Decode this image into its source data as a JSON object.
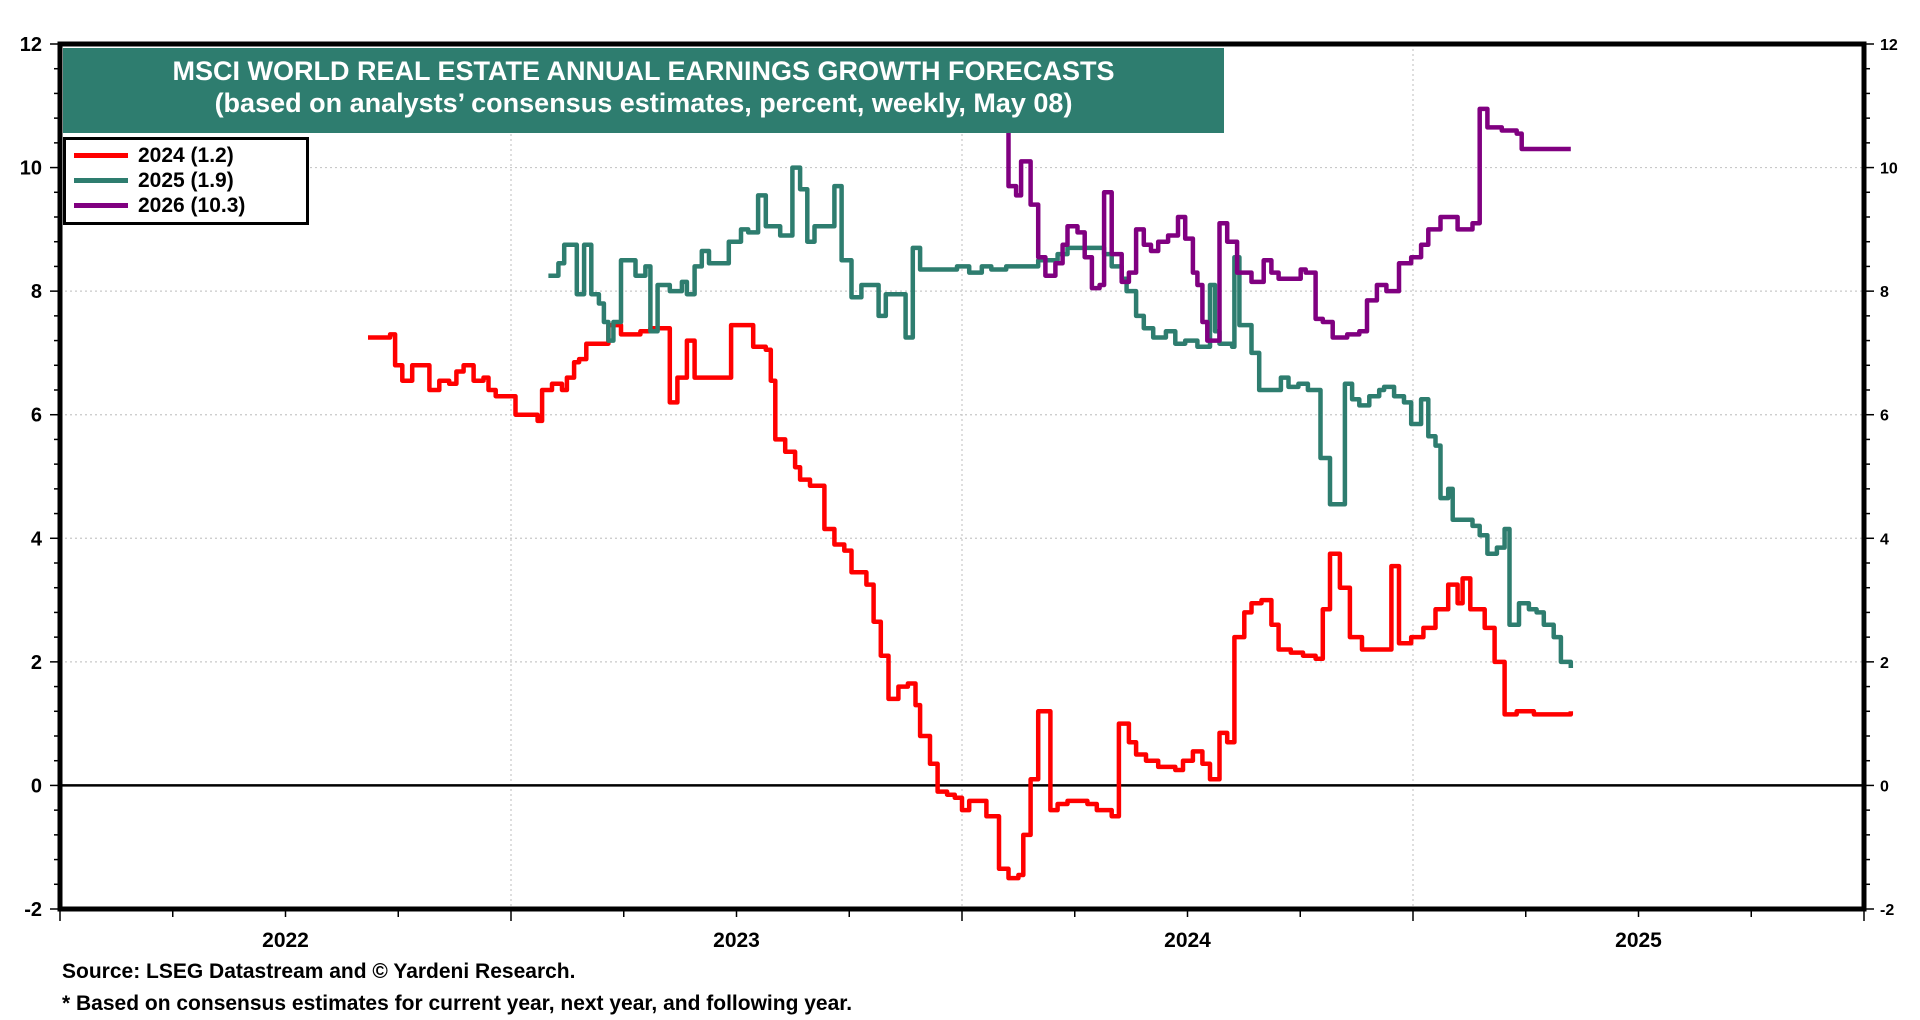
{
  "chart_data": {
    "type": "line",
    "title": "MSCI WORLD REAL ESTATE ANNUAL EARNINGS GROWTH FORECASTS",
    "subtitle": "(based on analysts’ consensus estimates, percent, weekly, May 08)",
    "xlabel": "",
    "ylabel": "",
    "xlim": [
      2022.0,
      2026.0
    ],
    "ylim": [
      -2,
      12
    ],
    "y_ticks": [
      "12",
      "10",
      "8",
      "6",
      "4",
      "2",
      "0",
      "-2"
    ],
    "y_tick_values": [
      12,
      10,
      8,
      6,
      4,
      2,
      0,
      -2
    ],
    "x_tick_labels": [
      "2022",
      "2023",
      "2024",
      "2025"
    ],
    "x_tick_label_positions": [
      2022.5,
      2023.5,
      2024.5,
      2025.5
    ],
    "grid": true,
    "zero_line": true,
    "legend_position": "top-left",
    "x_units": "decimal year",
    "interpolation": "step-after",
    "series": [
      {
        "name": "2024 (1.2)",
        "color": "#ff0000",
        "points": [
          [
            2022.683,
            7.25
          ],
          [
            2022.732,
            7.3
          ],
          [
            2022.743,
            6.8
          ],
          [
            2022.759,
            6.55
          ],
          [
            2022.781,
            6.8
          ],
          [
            2022.819,
            6.4
          ],
          [
            2022.841,
            6.55
          ],
          [
            2022.863,
            6.5
          ],
          [
            2022.879,
            6.7
          ],
          [
            2022.895,
            6.8
          ],
          [
            2022.917,
            6.55
          ],
          [
            2022.939,
            6.6
          ],
          [
            2022.95,
            6.4
          ],
          [
            2022.966,
            6.3
          ],
          [
            2023.01,
            6.0
          ],
          [
            2023.059,
            5.9
          ],
          [
            2023.069,
            6.4
          ],
          [
            2023.091,
            6.5
          ],
          [
            2023.113,
            6.4
          ],
          [
            2023.124,
            6.6
          ],
          [
            2023.14,
            6.85
          ],
          [
            2023.151,
            6.9
          ],
          [
            2023.167,
            7.15
          ],
          [
            2023.216,
            7.45
          ],
          [
            2023.244,
            7.3
          ],
          [
            2023.287,
            7.35
          ],
          [
            2023.309,
            7.4
          ],
          [
            2023.352,
            6.2
          ],
          [
            2023.369,
            6.6
          ],
          [
            2023.39,
            7.2
          ],
          [
            2023.407,
            6.6
          ],
          [
            2023.488,
            7.45
          ],
          [
            2023.537,
            7.1
          ],
          [
            2023.565,
            7.05
          ],
          [
            2023.576,
            6.55
          ],
          [
            2023.586,
            5.6
          ],
          [
            2023.608,
            5.4
          ],
          [
            2023.63,
            5.15
          ],
          [
            2023.641,
            4.95
          ],
          [
            2023.663,
            4.85
          ],
          [
            2023.695,
            4.15
          ],
          [
            2023.717,
            3.9
          ],
          [
            2023.739,
            3.8
          ],
          [
            2023.755,
            3.45
          ],
          [
            2023.788,
            3.25
          ],
          [
            2023.804,
            2.65
          ],
          [
            2023.82,
            2.1
          ],
          [
            2023.837,
            1.4
          ],
          [
            2023.859,
            1.6
          ],
          [
            2023.88,
            1.65
          ],
          [
            2023.897,
            1.3
          ],
          [
            2023.907,
            0.8
          ],
          [
            2023.929,
            0.35
          ],
          [
            2023.946,
            -0.1
          ],
          [
            2023.967,
            -0.15
          ],
          [
            2023.984,
            -0.2
          ],
          [
            2024.0,
            -0.4
          ],
          [
            2024.016,
            -0.25
          ],
          [
            2024.054,
            -0.5
          ],
          [
            2024.082,
            -1.35
          ],
          [
            2024.103,
            -1.5
          ],
          [
            2024.125,
            -1.45
          ],
          [
            2024.136,
            -0.8
          ],
          [
            2024.152,
            0.1
          ],
          [
            2024.169,
            1.2
          ],
          [
            2024.196,
            -0.4
          ],
          [
            2024.212,
            -0.3
          ],
          [
            2024.234,
            -0.25
          ],
          [
            2024.278,
            -0.3
          ],
          [
            2024.299,
            -0.4
          ],
          [
            2024.332,
            -0.5
          ],
          [
            2024.348,
            1.0
          ],
          [
            2024.37,
            0.7
          ],
          [
            2024.386,
            0.5
          ],
          [
            2024.408,
            0.4
          ],
          [
            2024.435,
            0.3
          ],
          [
            2024.473,
            0.25
          ],
          [
            2024.49,
            0.4
          ],
          [
            2024.512,
            0.55
          ],
          [
            2024.533,
            0.35
          ],
          [
            2024.55,
            0.1
          ],
          [
            2024.571,
            0.85
          ],
          [
            2024.588,
            0.7
          ],
          [
            2024.604,
            2.4
          ],
          [
            2024.626,
            2.8
          ],
          [
            2024.642,
            2.95
          ],
          [
            2024.664,
            3.0
          ],
          [
            2024.686,
            2.6
          ],
          [
            2024.702,
            2.2
          ],
          [
            2024.729,
            2.15
          ],
          [
            2024.756,
            2.1
          ],
          [
            2024.784,
            2.05
          ],
          [
            2024.8,
            2.85
          ],
          [
            2024.816,
            3.75
          ],
          [
            2024.838,
            3.2
          ],
          [
            2024.86,
            2.4
          ],
          [
            2024.887,
            2.2
          ],
          [
            2024.952,
            3.55
          ],
          [
            2024.969,
            2.3
          ],
          [
            2024.996,
            2.4
          ],
          [
            2025.023,
            2.55
          ],
          [
            2025.05,
            2.85
          ],
          [
            2025.078,
            3.25
          ],
          [
            2025.099,
            2.95
          ],
          [
            2025.11,
            3.35
          ],
          [
            2025.127,
            2.85
          ],
          [
            2025.159,
            2.55
          ],
          [
            2025.181,
            2.0
          ],
          [
            2025.203,
            1.15
          ],
          [
            2025.23,
            1.2
          ],
          [
            2025.268,
            1.15
          ],
          [
            2025.35,
            1.2
          ]
        ]
      },
      {
        "name": "2025 (1.9)",
        "color": "#2e7d6f",
        "points": [
          [
            2023.083,
            8.25
          ],
          [
            2023.105,
            8.45
          ],
          [
            2023.118,
            8.75
          ],
          [
            2023.146,
            7.95
          ],
          [
            2023.162,
            8.75
          ],
          [
            2023.178,
            7.95
          ],
          [
            2023.195,
            7.8
          ],
          [
            2023.206,
            7.5
          ],
          [
            2023.216,
            7.2
          ],
          [
            2023.227,
            7.5
          ],
          [
            2023.244,
            8.5
          ],
          [
            2023.276,
            8.25
          ],
          [
            2023.298,
            8.4
          ],
          [
            2023.309,
            7.35
          ],
          [
            2023.325,
            8.1
          ],
          [
            2023.352,
            8.0
          ],
          [
            2023.379,
            8.15
          ],
          [
            2023.39,
            7.95
          ],
          [
            2023.407,
            8.4
          ],
          [
            2023.423,
            8.65
          ],
          [
            2023.439,
            8.45
          ],
          [
            2023.483,
            8.8
          ],
          [
            2023.51,
            9.0
          ],
          [
            2023.526,
            8.95
          ],
          [
            2023.548,
            9.55
          ],
          [
            2023.565,
            9.05
          ],
          [
            2023.597,
            8.9
          ],
          [
            2023.624,
            10.0
          ],
          [
            2023.641,
            9.65
          ],
          [
            2023.657,
            8.8
          ],
          [
            2023.673,
            9.05
          ],
          [
            2023.717,
            9.7
          ],
          [
            2023.733,
            8.5
          ],
          [
            2023.755,
            7.9
          ],
          [
            2023.777,
            8.1
          ],
          [
            2023.815,
            7.6
          ],
          [
            2023.831,
            7.95
          ],
          [
            2023.875,
            7.25
          ],
          [
            2023.891,
            8.7
          ],
          [
            2023.907,
            8.35
          ],
          [
            2023.989,
            8.4
          ],
          [
            2024.016,
            8.3
          ],
          [
            2024.044,
            8.4
          ],
          [
            2024.065,
            8.35
          ],
          [
            2024.098,
            8.4
          ],
          [
            2024.169,
            8.5
          ],
          [
            2024.212,
            8.6
          ],
          [
            2024.234,
            8.7
          ],
          [
            2024.315,
            8.6
          ],
          [
            2024.332,
            8.4
          ],
          [
            2024.354,
            8.2
          ],
          [
            2024.365,
            8.0
          ],
          [
            2024.386,
            7.6
          ],
          [
            2024.403,
            7.4
          ],
          [
            2024.424,
            7.25
          ],
          [
            2024.452,
            7.35
          ],
          [
            2024.473,
            7.15
          ],
          [
            2024.495,
            7.2
          ],
          [
            2024.522,
            7.1
          ],
          [
            2024.55,
            8.1
          ],
          [
            2024.561,
            7.35
          ],
          [
            2024.571,
            7.15
          ],
          [
            2024.599,
            7.1
          ],
          [
            2024.604,
            8.55
          ],
          [
            2024.615,
            7.45
          ],
          [
            2024.642,
            7.0
          ],
          [
            2024.659,
            6.4
          ],
          [
            2024.707,
            6.6
          ],
          [
            2024.724,
            6.45
          ],
          [
            2024.746,
            6.5
          ],
          [
            2024.767,
            6.4
          ],
          [
            2024.795,
            5.3
          ],
          [
            2024.816,
            4.55
          ],
          [
            2024.849,
            6.5
          ],
          [
            2024.865,
            6.25
          ],
          [
            2024.881,
            6.15
          ],
          [
            2024.903,
            6.3
          ],
          [
            2024.925,
            6.4
          ],
          [
            2024.936,
            6.45
          ],
          [
            2024.958,
            6.3
          ],
          [
            2024.98,
            6.2
          ],
          [
            2024.996,
            5.85
          ],
          [
            2025.018,
            6.25
          ],
          [
            2025.034,
            5.65
          ],
          [
            2025.05,
            5.5
          ],
          [
            2025.061,
            4.65
          ],
          [
            2025.078,
            4.8
          ],
          [
            2025.088,
            4.3
          ],
          [
            2025.132,
            4.2
          ],
          [
            2025.148,
            4.05
          ],
          [
            2025.165,
            3.75
          ],
          [
            2025.186,
            3.85
          ],
          [
            2025.203,
            4.15
          ],
          [
            2025.214,
            2.6
          ],
          [
            2025.235,
            2.95
          ],
          [
            2025.257,
            2.85
          ],
          [
            2025.274,
            2.8
          ],
          [
            2025.29,
            2.6
          ],
          [
            2025.312,
            2.4
          ],
          [
            2025.328,
            2.0
          ],
          [
            2025.35,
            1.9
          ]
        ]
      },
      {
        "name": "2026 (10.3)",
        "color": "#800080",
        "points": [
          [
            2024.098,
            11.5
          ],
          [
            2024.103,
            9.7
          ],
          [
            2024.12,
            9.55
          ],
          [
            2024.131,
            10.1
          ],
          [
            2024.152,
            9.4
          ],
          [
            2024.169,
            8.55
          ],
          [
            2024.185,
            8.25
          ],
          [
            2024.207,
            8.45
          ],
          [
            2024.223,
            8.75
          ],
          [
            2024.234,
            9.05
          ],
          [
            2024.256,
            8.95
          ],
          [
            2024.272,
            8.55
          ],
          [
            2024.288,
            8.05
          ],
          [
            2024.305,
            8.1
          ],
          [
            2024.315,
            9.6
          ],
          [
            2024.332,
            8.6
          ],
          [
            2024.354,
            8.15
          ],
          [
            2024.37,
            8.3
          ],
          [
            2024.386,
            9.0
          ],
          [
            2024.403,
            8.75
          ],
          [
            2024.419,
            8.65
          ],
          [
            2024.435,
            8.8
          ],
          [
            2024.457,
            8.9
          ],
          [
            2024.479,
            9.2
          ],
          [
            2024.495,
            8.85
          ],
          [
            2024.512,
            8.3
          ],
          [
            2024.522,
            8.1
          ],
          [
            2024.533,
            7.5
          ],
          [
            2024.544,
            7.2
          ],
          [
            2024.571,
            9.1
          ],
          [
            2024.588,
            8.8
          ],
          [
            2024.61,
            8.3
          ],
          [
            2024.642,
            8.15
          ],
          [
            2024.669,
            8.5
          ],
          [
            2024.686,
            8.3
          ],
          [
            2024.702,
            8.2
          ],
          [
            2024.751,
            8.35
          ],
          [
            2024.762,
            8.3
          ],
          [
            2024.784,
            7.55
          ],
          [
            2024.8,
            7.5
          ],
          [
            2024.822,
            7.25
          ],
          [
            2024.854,
            7.3
          ],
          [
            2024.881,
            7.35
          ],
          [
            2024.898,
            7.85
          ],
          [
            2024.92,
            8.1
          ],
          [
            2024.941,
            8.0
          ],
          [
            2024.969,
            8.45
          ],
          [
            2024.996,
            8.55
          ],
          [
            2025.018,
            8.75
          ],
          [
            2025.034,
            9.0
          ],
          [
            2025.061,
            9.2
          ],
          [
            2025.099,
            9.0
          ],
          [
            2025.132,
            9.1
          ],
          [
            2025.148,
            10.95
          ],
          [
            2025.165,
            10.65
          ],
          [
            2025.197,
            10.6
          ],
          [
            2025.23,
            10.55
          ],
          [
            2025.241,
            10.3
          ],
          [
            2025.35,
            10.3
          ]
        ]
      }
    ]
  },
  "legend": {
    "items": [
      {
        "label": "2024 (1.2)",
        "color": "#ff0000"
      },
      {
        "label": "2025 (1.9)",
        "color": "#2e7d6f"
      },
      {
        "label": "2026 (10.3)",
        "color": "#800080"
      }
    ]
  },
  "title_box": {
    "line1": "MSCI WORLD REAL ESTATE ANNUAL EARNINGS GROWTH FORECASTS",
    "line2": "(based on analysts’ consensus estimates, percent, weekly, May 08)",
    "background": "#2e7d6f"
  },
  "footer": {
    "source": "Source: LSEG Datastream and © Yardeni Research.",
    "footnote": "* Based on consensus estimates for current year, next year, and following year."
  }
}
